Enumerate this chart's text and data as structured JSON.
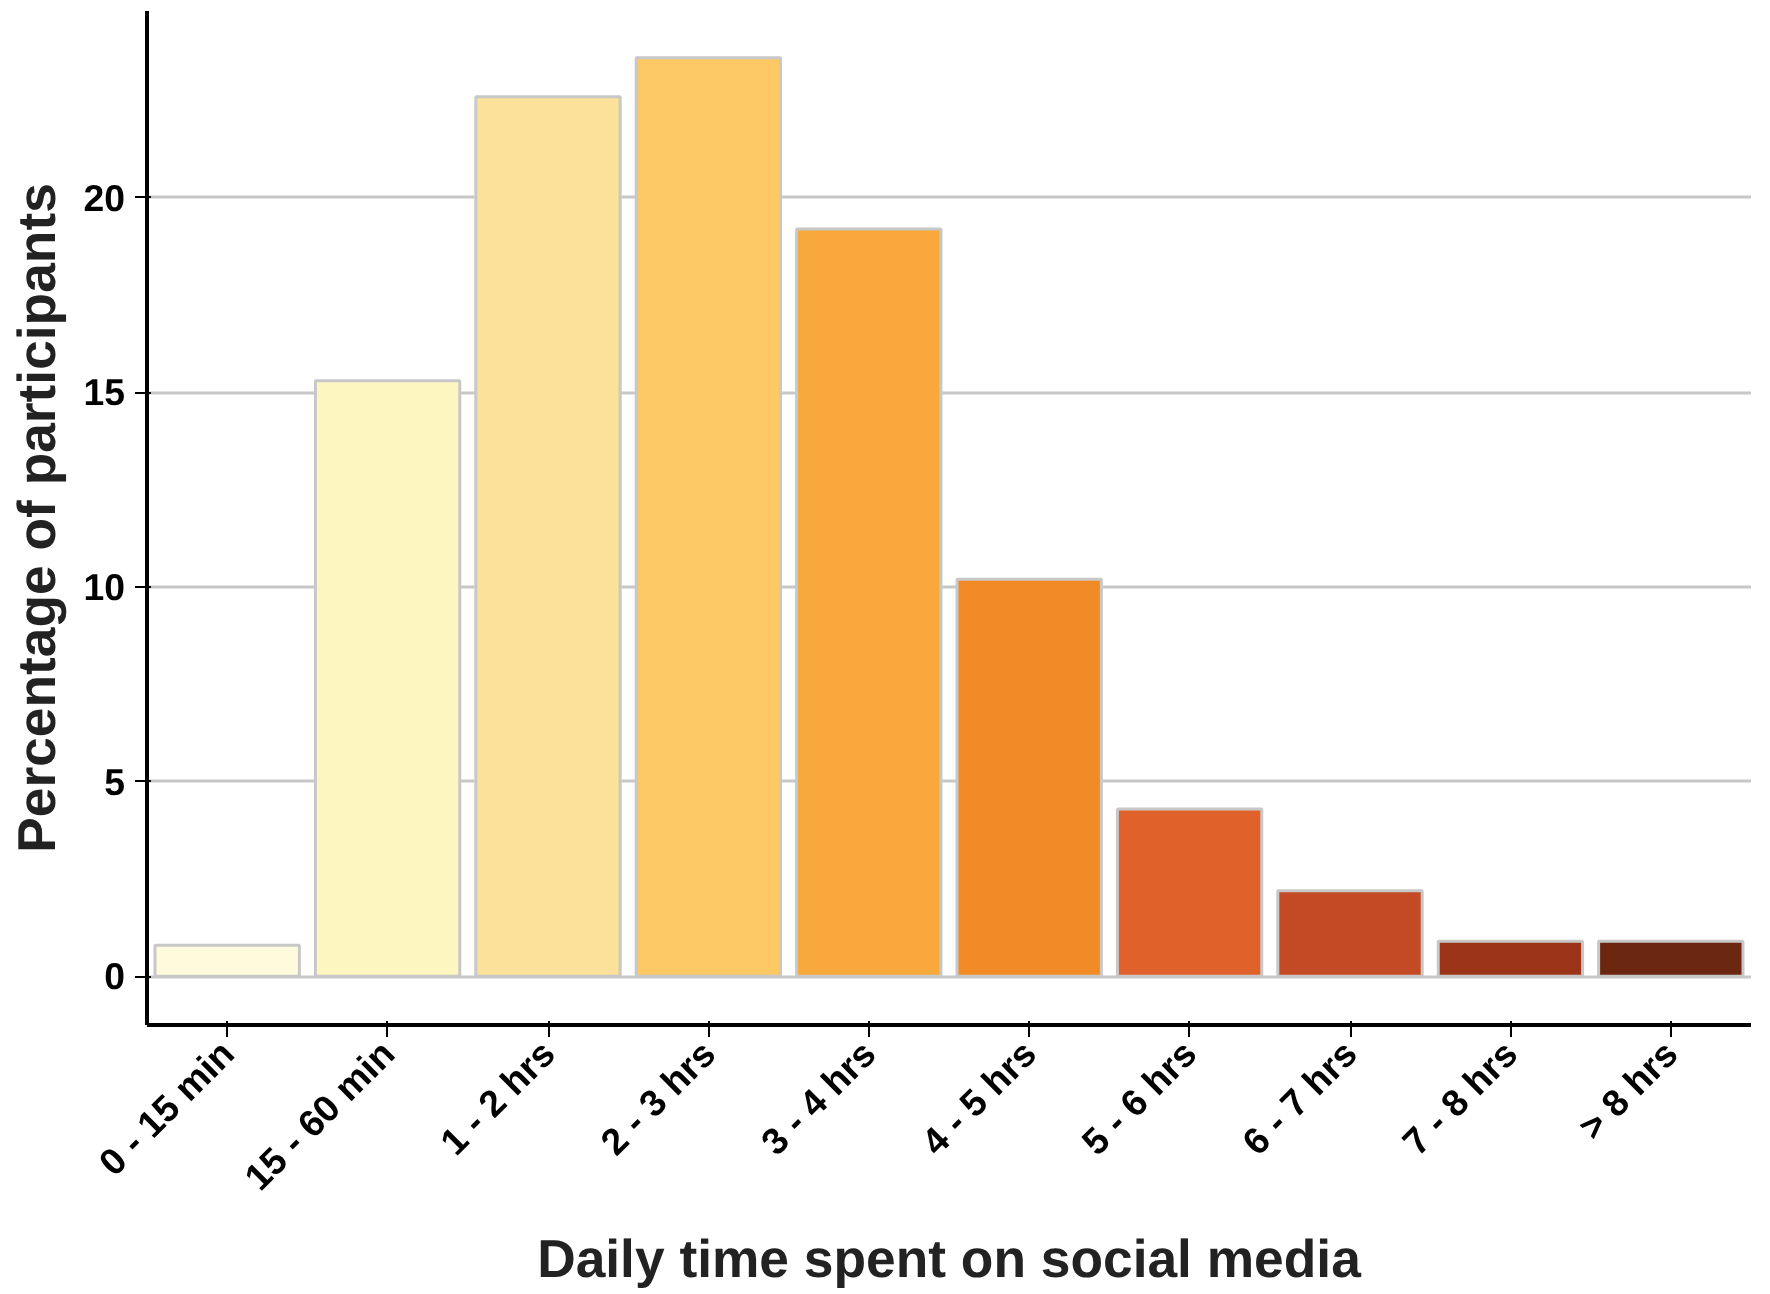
{
  "chart_data": {
    "type": "bar",
    "xlabel": "Daily time spent on social media",
    "ylabel": "Percentage of participants",
    "categories": [
      "0 - 15 min",
      "15 - 60 min",
      "1 - 2 hrs",
      "2 - 3 hrs",
      "3 - 4 hrs",
      "4 - 5 hrs",
      "5 - 6 hrs",
      "6 - 7 hrs",
      "7 - 8 hrs",
      "> 8 hrs"
    ],
    "values": [
      0.8,
      15.3,
      22.6,
      23.6,
      19.2,
      10.2,
      4.3,
      2.2,
      0.9,
      0.9
    ],
    "colors": [
      "#fdfbdc",
      "#fef6c0",
      "#fbe199",
      "#fcc964",
      "#f9a83c",
      "#f28a26",
      "#e0622a",
      "#c44a25",
      "#9b3419",
      "#6b2710"
    ],
    "ylim": [
      -1.25,
      24.8
    ],
    "yticks": [
      0,
      5,
      10,
      15,
      20
    ],
    "grid": "y"
  }
}
